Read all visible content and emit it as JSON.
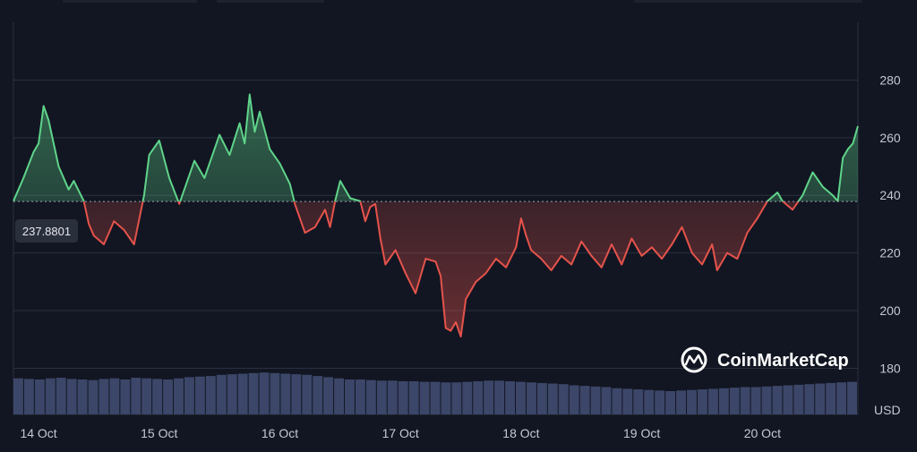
{
  "brand": {
    "name": "CoinMarketCap",
    "icon": "coinmarketcap-logo-icon"
  },
  "colors": {
    "background": "#121622",
    "up": "#5fd48a",
    "down": "#e5534b",
    "grid": "#2a3040",
    "volume": "#3c4668",
    "text": "#c4c8d2"
  },
  "chart_data": {
    "type": "line",
    "ylabel": "USD",
    "baseline": 237.8801,
    "baseline_label": "237.8801",
    "ylim": [
      164,
      300
    ],
    "yticks": [
      180,
      200,
      220,
      240,
      260,
      280
    ],
    "xticks": [
      "14 Oct",
      "15 Oct",
      "16 Oct",
      "17 Oct",
      "18 Oct",
      "19 Oct",
      "20 Oct"
    ],
    "grid": true,
    "x_start": "13 Oct 19:00",
    "x_end": "20 Oct 19:00",
    "series": [
      {
        "points": [
          [
            "13 Oct 19:00",
            238
          ],
          [
            "13 Oct 21:00",
            246
          ],
          [
            "13 Oct 23:00",
            255
          ],
          [
            "14 Oct 00:00",
            258
          ],
          [
            "14 Oct 01:00",
            271
          ],
          [
            "14 Oct 02:00",
            266
          ],
          [
            "14 Oct 04:00",
            250
          ],
          [
            "14 Oct 06:00",
            242
          ],
          [
            "14 Oct 07:00",
            245
          ],
          [
            "14 Oct 09:00",
            238
          ],
          [
            "14 Oct 10:00",
            230
          ],
          [
            "14 Oct 11:00",
            226
          ],
          [
            "14 Oct 13:00",
            223
          ],
          [
            "14 Oct 15:00",
            231
          ],
          [
            "14 Oct 17:00",
            228
          ],
          [
            "14 Oct 19:00",
            223
          ],
          [
            "14 Oct 21:00",
            240
          ],
          [
            "14 Oct 22:00",
            254
          ],
          [
            "15 Oct 00:00",
            259
          ],
          [
            "15 Oct 02:00",
            246
          ],
          [
            "15 Oct 04:00",
            237
          ],
          [
            "15 Oct 05:00",
            242
          ],
          [
            "15 Oct 07:00",
            252
          ],
          [
            "15 Oct 09:00",
            246
          ],
          [
            "15 Oct 11:00",
            256
          ],
          [
            "15 Oct 12:00",
            261
          ],
          [
            "15 Oct 14:00",
            254
          ],
          [
            "15 Oct 16:00",
            265
          ],
          [
            "15 Oct 17:00",
            258
          ],
          [
            "15 Oct 18:00",
            275
          ],
          [
            "15 Oct 19:00",
            262
          ],
          [
            "15 Oct 20:00",
            269
          ],
          [
            "15 Oct 22:00",
            256
          ],
          [
            "16 Oct 00:00",
            251
          ],
          [
            "16 Oct 02:00",
            244
          ],
          [
            "16 Oct 03:00",
            237
          ],
          [
            "16 Oct 05:00",
            227
          ],
          [
            "16 Oct 07:00",
            229
          ],
          [
            "16 Oct 09:00",
            235
          ],
          [
            "16 Oct 10:00",
            229
          ],
          [
            "16 Oct 11:00",
            238
          ],
          [
            "16 Oct 12:00",
            245
          ],
          [
            "16 Oct 14:00",
            239
          ],
          [
            "16 Oct 16:00",
            238
          ],
          [
            "16 Oct 17:00",
            231
          ],
          [
            "16 Oct 18:00",
            236
          ],
          [
            "16 Oct 19:00",
            237
          ],
          [
            "16 Oct 20:00",
            225
          ],
          [
            "16 Oct 21:00",
            216
          ],
          [
            "16 Oct 23:00",
            221
          ],
          [
            "17 Oct 01:00",
            213
          ],
          [
            "17 Oct 03:00",
            206
          ],
          [
            "17 Oct 05:00",
            218
          ],
          [
            "17 Oct 07:00",
            217
          ],
          [
            "17 Oct 08:00",
            212
          ],
          [
            "17 Oct 09:00",
            194
          ],
          [
            "17 Oct 10:00",
            193
          ],
          [
            "17 Oct 11:00",
            196
          ],
          [
            "17 Oct 12:00",
            191
          ],
          [
            "17 Oct 13:00",
            204
          ],
          [
            "17 Oct 15:00",
            210
          ],
          [
            "17 Oct 17:00",
            213
          ],
          [
            "17 Oct 19:00",
            218
          ],
          [
            "17 Oct 21:00",
            215
          ],
          [
            "17 Oct 23:00",
            222
          ],
          [
            "18 Oct 00:00",
            232
          ],
          [
            "18 Oct 01:00",
            226
          ],
          [
            "18 Oct 02:00",
            221
          ],
          [
            "18 Oct 04:00",
            218
          ],
          [
            "18 Oct 06:00",
            214
          ],
          [
            "18 Oct 08:00",
            219
          ],
          [
            "18 Oct 10:00",
            216
          ],
          [
            "18 Oct 12:00",
            224
          ],
          [
            "18 Oct 14:00",
            219
          ],
          [
            "18 Oct 16:00",
            215
          ],
          [
            "18 Oct 18:00",
            223
          ],
          [
            "18 Oct 20:00",
            216
          ],
          [
            "18 Oct 22:00",
            225
          ],
          [
            "19 Oct 00:00",
            219
          ],
          [
            "19 Oct 02:00",
            222
          ],
          [
            "19 Oct 04:00",
            218
          ],
          [
            "19 Oct 06:00",
            223
          ],
          [
            "19 Oct 08:00",
            229
          ],
          [
            "19 Oct 10:00",
            220
          ],
          [
            "19 Oct 12:00",
            216
          ],
          [
            "19 Oct 14:00",
            223
          ],
          [
            "19 Oct 15:00",
            214
          ],
          [
            "19 Oct 17:00",
            220
          ],
          [
            "19 Oct 19:00",
            218
          ],
          [
            "19 Oct 21:00",
            227
          ],
          [
            "19 Oct 23:00",
            232
          ],
          [
            "20 Oct 01:00",
            238
          ],
          [
            "20 Oct 03:00",
            241
          ],
          [
            "20 Oct 04:00",
            238
          ],
          [
            "20 Oct 06:00",
            235
          ],
          [
            "20 Oct 08:00",
            240
          ],
          [
            "20 Oct 10:00",
            248
          ],
          [
            "20 Oct 12:00",
            243
          ],
          [
            "20 Oct 14:00",
            240
          ],
          [
            "20 Oct 15:00",
            238
          ],
          [
            "20 Oct 16:00",
            253
          ],
          [
            "20 Oct 17:00",
            256
          ],
          [
            "20 Oct 18:00",
            258
          ],
          [
            "20 Oct 19:00",
            264
          ]
        ]
      }
    ],
    "volume": {
      "ylim": [
        0,
        100
      ],
      "values": [
        62,
        61,
        60,
        62,
        63,
        61,
        60,
        59,
        61,
        62,
        60,
        63,
        62,
        61,
        60,
        62,
        64,
        65,
        66,
        68,
        69,
        70,
        71,
        72,
        71,
        70,
        69,
        68,
        66,
        64,
        62,
        60,
        60,
        59,
        58,
        58,
        57,
        57,
        56,
        56,
        55,
        55,
        56,
        57,
        58,
        58,
        57,
        56,
        55,
        54,
        53,
        52,
        50,
        49,
        48,
        47,
        45,
        44,
        43,
        42,
        41,
        40,
        41,
        42,
        43,
        44,
        45,
        46,
        47,
        47,
        48,
        49,
        50,
        51,
        52,
        53,
        54,
        55,
        56
      ]
    }
  }
}
